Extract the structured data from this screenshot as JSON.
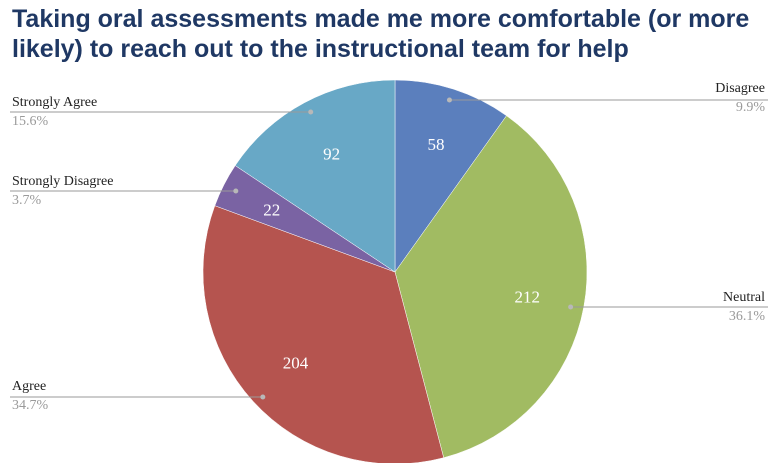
{
  "chart_data": {
    "type": "pie",
    "title": "Taking oral assessments made me more comfortable (or more likely) to reach out to the instructional team for help",
    "slices": [
      {
        "label": "Disagree",
        "value": 58,
        "percent": "9.9%",
        "color": "#5b7fbd"
      },
      {
        "label": "Neutral",
        "value": 212,
        "percent": "36.1%",
        "color": "#a1bb62"
      },
      {
        "label": "Agree",
        "value": 204,
        "percent": "34.7%",
        "color": "#b5544f"
      },
      {
        "label": "Strongly Disagree",
        "value": 22,
        "percent": "3.7%",
        "color": "#7a63a3"
      },
      {
        "label": "Strongly Agree",
        "value": 92,
        "percent": "15.6%",
        "color": "#68a8c6"
      }
    ],
    "legend_placement": "outside, leader lines"
  }
}
